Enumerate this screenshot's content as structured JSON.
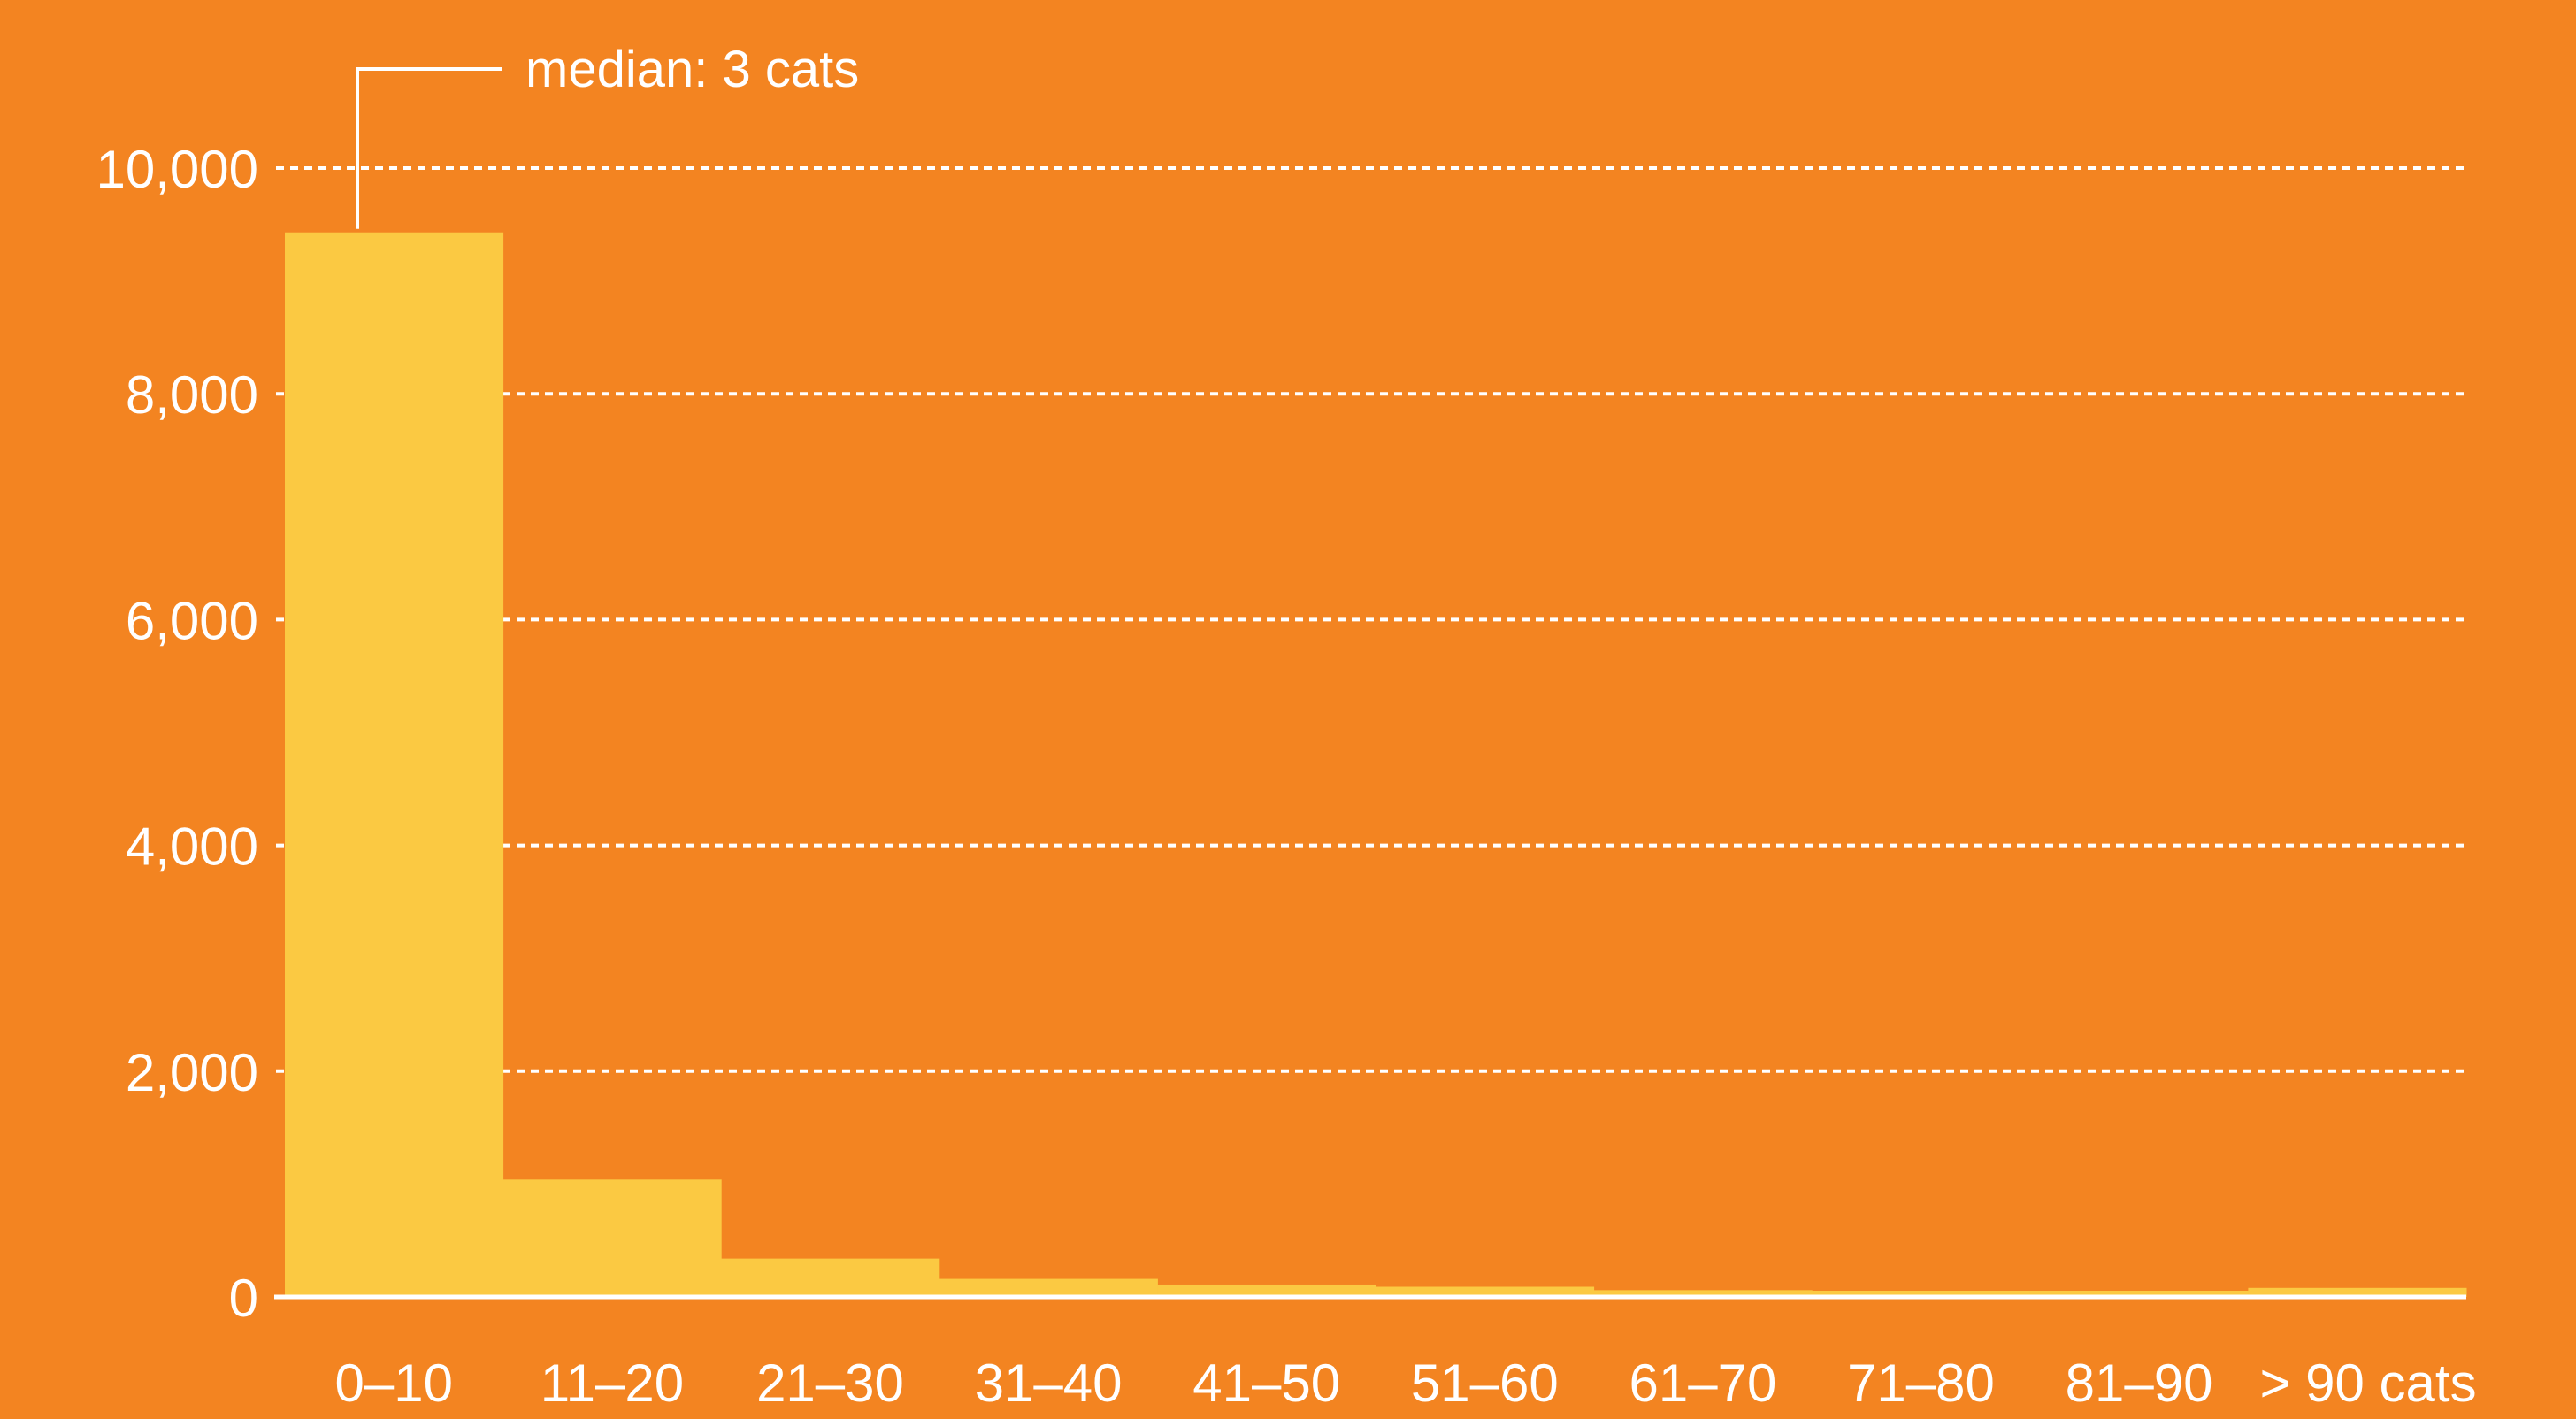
{
  "colors": {
    "background": "#F38421",
    "bar": "#FBC942",
    "text": "#FFFFFF",
    "grid": "#FFFFFF"
  },
  "annotation": {
    "text": "median: 3 cats"
  },
  "chart_data": {
    "type": "bar",
    "categories": [
      "0–10",
      "11–20",
      "21–30",
      "31–40",
      "41–50",
      "51–60",
      "61–70",
      "71–80",
      "81–90",
      "> 90 cats"
    ],
    "values": [
      9430,
      1040,
      340,
      160,
      110,
      90,
      60,
      55,
      55,
      80
    ],
    "title": "",
    "xlabel": "",
    "ylabel": "",
    "ylim": [
      0,
      10000
    ],
    "yticks": [
      0,
      2000,
      4000,
      6000,
      8000,
      10000
    ],
    "ytick_labels": [
      "0",
      "2,000",
      "4,000",
      "6,000",
      "8,000",
      "10,000"
    ],
    "grid": "horizontal dashed",
    "legend": "none",
    "median_category_index": 0
  }
}
